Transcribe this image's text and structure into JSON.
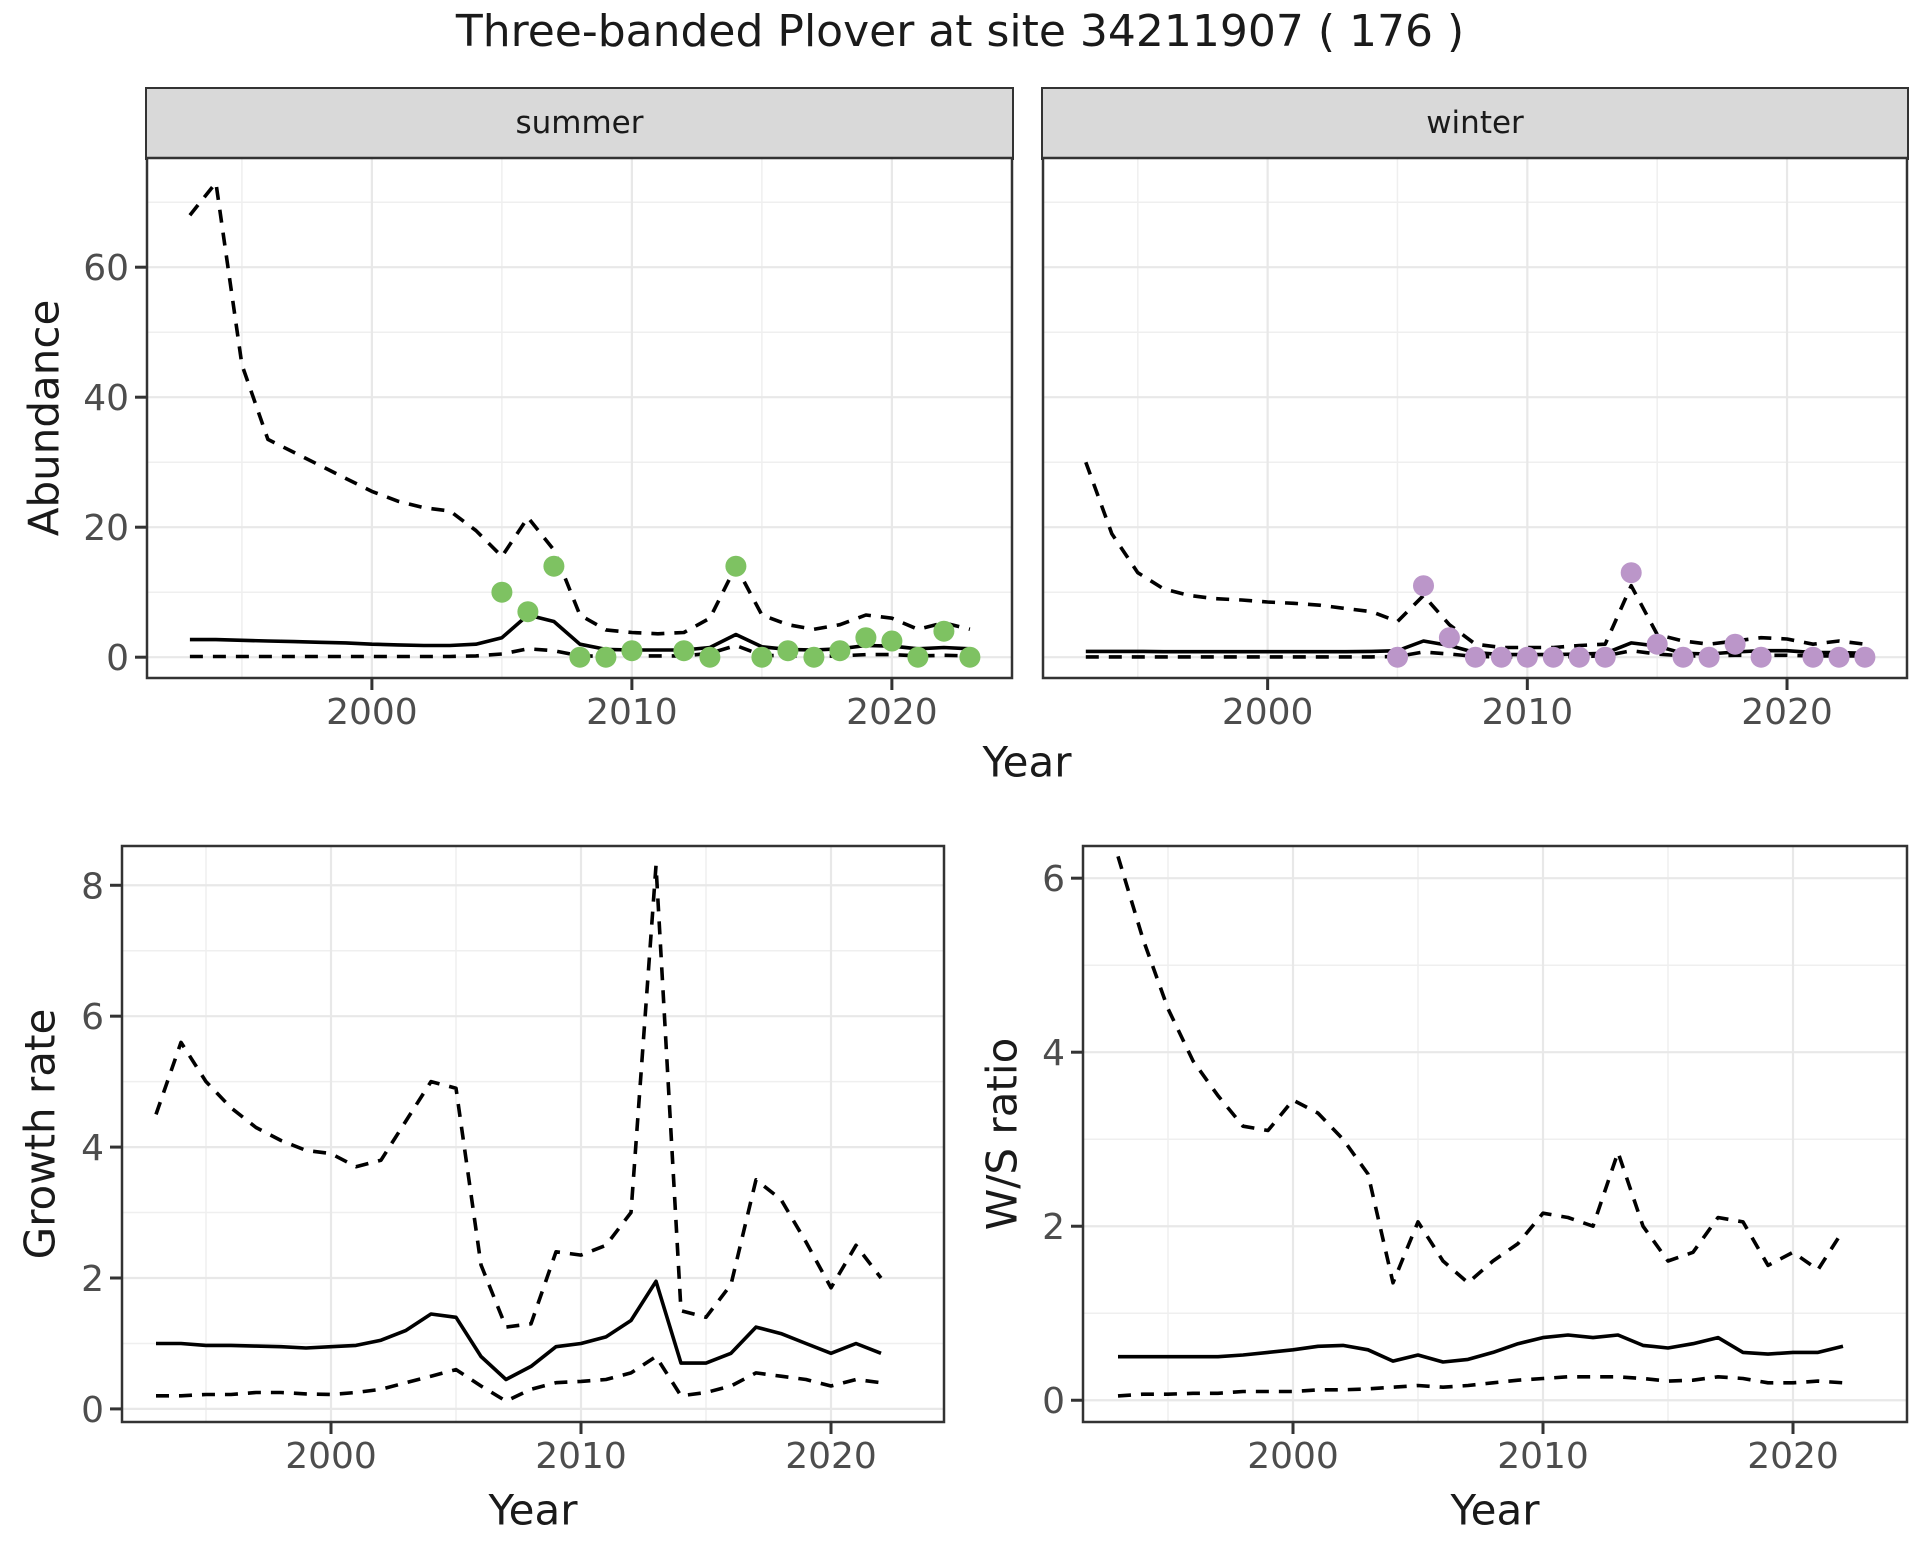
{
  "title": "Three-banded Plover at site 34211907 ( 176 )",
  "labels": {
    "abundance": "Abundance",
    "growth_rate": "Growth rate",
    "ws_ratio": "W/S ratio",
    "year": "Year"
  },
  "colors": {
    "summer_point": "#7ec262",
    "winter_point": "#bb96c9",
    "line": "#000000",
    "grid_major": "#e8e8e8",
    "grid_minor": "#efefef",
    "panel_border": "#333333",
    "tick": "#333333",
    "tick_label": "#4d4d4d",
    "text": "#1a1a1a",
    "strip_bg": "#d9d9d9"
  },
  "chart_data": [
    {
      "id": "abundance-summer",
      "type": "line",
      "facet_label": "summer",
      "xlabel": "Year",
      "ylabel": "Abundance",
      "xlim": [
        1991.35,
        2024.62
      ],
      "ylim": [
        -3.2,
        76.8
      ],
      "x_ticks": [
        2000,
        2010,
        2020
      ],
      "y_ticks": [
        0,
        20,
        40,
        60
      ],
      "x_minor": [
        1995,
        2005,
        2015
      ],
      "y_minor": [
        10,
        30,
        50,
        70
      ],
      "show_y_tick_labels": true,
      "series": [
        {
          "name": "upper-ci",
          "style": "dashed",
          "years": [
            1993,
            1994,
            1995,
            1996,
            1997,
            1998,
            1999,
            2000,
            2001,
            2002,
            2003,
            2004,
            2005,
            2006,
            2007,
            2008,
            2009,
            2010,
            2011,
            2012,
            2013,
            2014,
            2015,
            2016,
            2017,
            2018,
            2019,
            2020,
            2021,
            2022,
            2023
          ],
          "values": [
            68,
            73,
            45,
            33.5,
            31.5,
            29.5,
            27.5,
            25.5,
            24,
            23,
            22.5,
            19.5,
            15.5,
            21.5,
            16.5,
            6.5,
            4.2,
            3.8,
            3.6,
            3.8,
            6,
            14,
            6.5,
            5,
            4.3,
            5,
            6.5,
            6,
            4.3,
            5.3,
            4.3
          ]
        },
        {
          "name": "median",
          "style": "solid",
          "years": [
            1993,
            1994,
            1995,
            1996,
            1997,
            1998,
            1999,
            2000,
            2001,
            2002,
            2003,
            2004,
            2005,
            2006,
            2007,
            2008,
            2009,
            2010,
            2011,
            2012,
            2013,
            2014,
            2015,
            2016,
            2017,
            2018,
            2019,
            2020,
            2021,
            2022,
            2023
          ],
          "values": [
            2.7,
            2.7,
            2.6,
            2.5,
            2.4,
            2.3,
            2.2,
            2.0,
            1.9,
            1.8,
            1.8,
            2.0,
            3.0,
            6.5,
            5.5,
            2.0,
            1.2,
            1.1,
            1.1,
            1.1,
            1.5,
            3.5,
            1.6,
            1.2,
            1.1,
            1.3,
            1.8,
            1.7,
            1.3,
            1.5,
            1.3
          ]
        },
        {
          "name": "lower-ci",
          "style": "dashed",
          "years": [
            1993,
            1994,
            1995,
            1996,
            1997,
            1998,
            1999,
            2000,
            2001,
            2002,
            2003,
            2004,
            2005,
            2006,
            2007,
            2008,
            2009,
            2010,
            2011,
            2012,
            2013,
            2014,
            2015,
            2016,
            2017,
            2018,
            2019,
            2020,
            2021,
            2022,
            2023
          ],
          "values": [
            0.1,
            0.1,
            0.1,
            0.1,
            0.1,
            0.1,
            0.1,
            0.1,
            0.1,
            0.1,
            0.1,
            0.2,
            0.5,
            1.3,
            1.0,
            0.2,
            0.15,
            0.2,
            0.2,
            0.2,
            0.6,
            1.8,
            0.3,
            0.2,
            0.15,
            0.2,
            0.4,
            0.4,
            0.2,
            0.3,
            0.2
          ]
        }
      ],
      "points": {
        "name": "observed-counts",
        "color_key": "summer_point",
        "years": [
          2005,
          2006,
          2007,
          2008,
          2009,
          2010,
          2012,
          2013,
          2014,
          2015,
          2016,
          2017,
          2018,
          2019,
          2020,
          2021,
          2022,
          2023
        ],
        "values": [
          10,
          7,
          14,
          0,
          0,
          1,
          1,
          0,
          14,
          0,
          1,
          0,
          1,
          3,
          2.5,
          0,
          4,
          0
        ]
      }
    },
    {
      "id": "abundance-winter",
      "type": "line",
      "facet_label": "winter",
      "xlabel": "Year",
      "ylabel": "Abundance",
      "xlim": [
        1991.35,
        2024.62
      ],
      "ylim": [
        -3.2,
        76.8
      ],
      "x_ticks": [
        2000,
        2010,
        2020
      ],
      "y_ticks": [
        0,
        20,
        40,
        60
      ],
      "x_minor": [
        1995,
        2005,
        2015
      ],
      "y_minor": [
        10,
        30,
        50,
        70
      ],
      "show_y_tick_labels": false,
      "series": [
        {
          "name": "upper-ci",
          "style": "dashed",
          "years": [
            1993,
            1994,
            1995,
            1996,
            1997,
            1998,
            1999,
            2000,
            2001,
            2002,
            2003,
            2004,
            2005,
            2006,
            2007,
            2008,
            2009,
            2010,
            2011,
            2012,
            2013,
            2014,
            2015,
            2016,
            2017,
            2018,
            2019,
            2020,
            2021,
            2022,
            2023
          ],
          "values": [
            30,
            19,
            13,
            10.5,
            9.5,
            9,
            8.8,
            8.5,
            8.3,
            8,
            7.5,
            7,
            5.5,
            9.5,
            5,
            2,
            1.5,
            1.5,
            1.5,
            1.8,
            2,
            11,
            3.5,
            2.5,
            2,
            2.5,
            3,
            2.8,
            2,
            2.5,
            2
          ]
        },
        {
          "name": "median",
          "style": "solid",
          "years": [
            1993,
            1994,
            1995,
            1996,
            1997,
            1998,
            1999,
            2000,
            2001,
            2002,
            2003,
            2004,
            2005,
            2006,
            2007,
            2008,
            2009,
            2010,
            2011,
            2012,
            2013,
            2014,
            2015,
            2016,
            2017,
            2018,
            2019,
            2020,
            2021,
            2022,
            2023
          ],
          "values": [
            0.9,
            0.9,
            0.9,
            0.85,
            0.85,
            0.85,
            0.85,
            0.85,
            0.85,
            0.85,
            0.85,
            0.9,
            1.0,
            2.5,
            1.8,
            0.7,
            0.4,
            0.4,
            0.4,
            0.5,
            0.6,
            2.2,
            1.7,
            0.6,
            0.5,
            0.8,
            1.0,
            1.0,
            0.7,
            0.7,
            0.6
          ]
        },
        {
          "name": "lower-ci",
          "style": "dashed",
          "years": [
            1993,
            1994,
            1995,
            1996,
            1997,
            1998,
            1999,
            2000,
            2001,
            2002,
            2003,
            2004,
            2005,
            2006,
            2007,
            2008,
            2009,
            2010,
            2011,
            2012,
            2013,
            2014,
            2015,
            2016,
            2017,
            2018,
            2019,
            2020,
            2021,
            2022,
            2023
          ],
          "values": [
            0.05,
            0.05,
            0.05,
            0.05,
            0.05,
            0.05,
            0.05,
            0.05,
            0.05,
            0.05,
            0.05,
            0.05,
            0.1,
            0.8,
            0.5,
            0.1,
            0.05,
            0.05,
            0.05,
            0.1,
            0.2,
            1.0,
            0.5,
            0.2,
            0.2,
            0.3,
            0.3,
            0.3,
            0.2,
            0.2,
            0.2
          ]
        }
      ],
      "points": {
        "name": "observed-counts",
        "color_key": "winter_point",
        "years": [
          2005,
          2006,
          2007,
          2008,
          2009,
          2010,
          2011,
          2012,
          2013,
          2014,
          2015,
          2016,
          2017,
          2018,
          2019,
          2021,
          2022,
          2023
        ],
        "values": [
          0,
          11,
          3,
          0,
          0,
          0,
          0,
          0,
          0,
          13,
          2,
          0,
          0,
          2,
          0,
          0,
          0,
          0
        ]
      }
    },
    {
      "id": "growth-rate",
      "type": "line",
      "facet_label": "",
      "xlabel": "Year",
      "ylabel": "Growth rate",
      "xlim": [
        1991.64,
        2024.52
      ],
      "ylim": [
        -0.2,
        8.6
      ],
      "x_ticks": [
        2000,
        2010,
        2020
      ],
      "y_ticks": [
        0,
        2,
        4,
        6,
        8
      ],
      "x_minor": [
        1995,
        2005,
        2015
      ],
      "y_minor": [
        1,
        3,
        5,
        7
      ],
      "show_y_tick_labels": true,
      "series": [
        {
          "name": "upper-ci",
          "style": "dashed",
          "years": [
            1993,
            1994,
            1995,
            1996,
            1997,
            1998,
            1999,
            2000,
            2001,
            2002,
            2003,
            2004,
            2005,
            2006,
            2007,
            2008,
            2009,
            2010,
            2011,
            2012,
            2013,
            2014,
            2015,
            2016,
            2017,
            2018,
            2019,
            2020,
            2021,
            2022
          ],
          "values": [
            4.5,
            5.6,
            5.0,
            4.6,
            4.3,
            4.1,
            3.95,
            3.9,
            3.7,
            3.8,
            4.4,
            5.0,
            4.9,
            2.2,
            1.25,
            1.3,
            2.4,
            2.35,
            2.5,
            3.0,
            8.3,
            1.5,
            1.4,
            1.9,
            3.5,
            3.2,
            2.55,
            1.85,
            2.5,
            2.0
          ]
        },
        {
          "name": "median",
          "style": "solid",
          "years": [
            1993,
            1994,
            1995,
            1996,
            1997,
            1998,
            1999,
            2000,
            2001,
            2002,
            2003,
            2004,
            2005,
            2006,
            2007,
            2008,
            2009,
            2010,
            2011,
            2012,
            2013,
            2014,
            2015,
            2016,
            2017,
            2018,
            2019,
            2020,
            2021,
            2022
          ],
          "values": [
            1.0,
            1.0,
            0.97,
            0.97,
            0.96,
            0.95,
            0.93,
            0.95,
            0.97,
            1.05,
            1.2,
            1.45,
            1.4,
            0.8,
            0.45,
            0.65,
            0.95,
            1.0,
            1.1,
            1.35,
            1.95,
            0.7,
            0.7,
            0.85,
            1.25,
            1.15,
            1.0,
            0.85,
            1.0,
            0.85
          ]
        },
        {
          "name": "lower-ci",
          "style": "dashed",
          "years": [
            1993,
            1994,
            1995,
            1996,
            1997,
            1998,
            1999,
            2000,
            2001,
            2002,
            2003,
            2004,
            2005,
            2006,
            2007,
            2008,
            2009,
            2010,
            2011,
            2012,
            2013,
            2014,
            2015,
            2016,
            2017,
            2018,
            2019,
            2020,
            2021,
            2022
          ],
          "values": [
            0.2,
            0.2,
            0.22,
            0.22,
            0.25,
            0.25,
            0.23,
            0.22,
            0.25,
            0.3,
            0.4,
            0.5,
            0.6,
            0.35,
            0.12,
            0.3,
            0.4,
            0.42,
            0.45,
            0.55,
            0.8,
            0.2,
            0.25,
            0.35,
            0.55,
            0.5,
            0.45,
            0.35,
            0.45,
            0.4
          ]
        }
      ],
      "points": null
    },
    {
      "id": "ws-ratio",
      "type": "line",
      "facet_label": "",
      "xlabel": "Year",
      "ylabel": "W/S ratio",
      "xlim": [
        1991.6,
        2024.56
      ],
      "ylim": [
        -0.25,
        6.37
      ],
      "x_ticks": [
        2000,
        2010,
        2020
      ],
      "y_ticks": [
        0,
        2,
        4,
        6
      ],
      "x_minor": [
        1995,
        2005,
        2015
      ],
      "y_minor": [
        1,
        3,
        5
      ],
      "show_y_tick_labels": true,
      "series": [
        {
          "name": "upper-ci",
          "style": "dashed",
          "years": [
            1993,
            1994,
            1995,
            1996,
            1997,
            1998,
            1999,
            2000,
            2001,
            2002,
            2003,
            2004,
            2005,
            2006,
            2007,
            2008,
            2009,
            2010,
            2011,
            2012,
            2013,
            2014,
            2015,
            2016,
            2017,
            2018,
            2019,
            2020,
            2021,
            2022
          ],
          "values": [
            6.25,
            5.3,
            4.5,
            3.9,
            3.5,
            3.15,
            3.1,
            3.45,
            3.3,
            3.0,
            2.6,
            1.35,
            2.05,
            1.6,
            1.35,
            1.6,
            1.8,
            2.15,
            2.1,
            2.0,
            2.85,
            2.0,
            1.6,
            1.7,
            2.1,
            2.05,
            1.55,
            1.7,
            1.5,
            1.95
          ]
        },
        {
          "name": "median",
          "style": "solid",
          "years": [
            1993,
            1994,
            1995,
            1996,
            1997,
            1998,
            1999,
            2000,
            2001,
            2002,
            2003,
            2004,
            2005,
            2006,
            2007,
            2008,
            2009,
            2010,
            2011,
            2012,
            2013,
            2014,
            2015,
            2016,
            2017,
            2018,
            2019,
            2020,
            2021,
            2022
          ],
          "values": [
            0.5,
            0.5,
            0.5,
            0.5,
            0.5,
            0.52,
            0.55,
            0.58,
            0.62,
            0.63,
            0.58,
            0.45,
            0.52,
            0.44,
            0.47,
            0.55,
            0.65,
            0.72,
            0.75,
            0.72,
            0.75,
            0.63,
            0.6,
            0.65,
            0.72,
            0.55,
            0.53,
            0.55,
            0.55,
            0.62
          ]
        },
        {
          "name": "lower-ci",
          "style": "dashed",
          "years": [
            1993,
            1994,
            1995,
            1996,
            1997,
            1998,
            1999,
            2000,
            2001,
            2002,
            2003,
            2004,
            2005,
            2006,
            2007,
            2008,
            2009,
            2010,
            2011,
            2012,
            2013,
            2014,
            2015,
            2016,
            2017,
            2018,
            2019,
            2020,
            2021,
            2022
          ],
          "values": [
            0.05,
            0.07,
            0.07,
            0.08,
            0.08,
            0.1,
            0.1,
            0.1,
            0.12,
            0.12,
            0.13,
            0.15,
            0.17,
            0.15,
            0.17,
            0.2,
            0.23,
            0.25,
            0.27,
            0.27,
            0.27,
            0.25,
            0.22,
            0.23,
            0.27,
            0.25,
            0.2,
            0.2,
            0.22,
            0.2
          ]
        }
      ],
      "points": null
    }
  ]
}
